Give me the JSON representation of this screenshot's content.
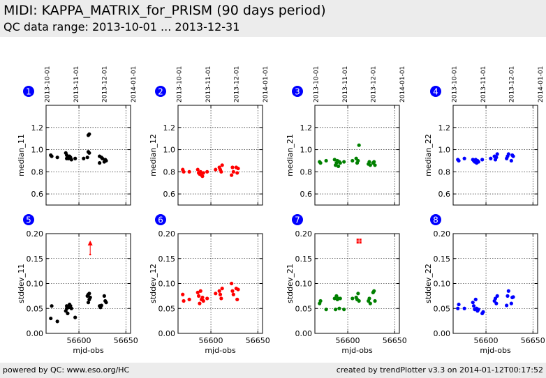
{
  "header": {
    "title": "MIDI: KAPPA_MATRIX_for_PRISM (90 days period)",
    "subtitle": "QC data range: 2013-10-01 ... 2013-12-31"
  },
  "footer": {
    "left": "powered by QC: www.eso.org/HC",
    "right": "created by trendPlotter v3.3 on 2014-01-12T00:17:52"
  },
  "chart_data": [
    {
      "type": "scatter",
      "panel": "1",
      "color": "#000000",
      "ylabel": "median_11",
      "xlim": [
        56565,
        56655
      ],
      "ylim": [
        0.5,
        1.4
      ],
      "yticks": [
        0.6,
        0.8,
        1.0,
        1.2
      ],
      "yticklabels": [
        "0.6",
        "0.8",
        "1.0",
        "1.2"
      ],
      "xticks": [
        56600,
        56650
      ],
      "xticklabels": [],
      "top_ticks": [
        "2013-10-01",
        "2013-11-01",
        "2013-12-01",
        "2014-01-01"
      ],
      "x": [
        56570,
        56571,
        56577,
        56586,
        56587,
        56587,
        56588,
        56589,
        56590,
        56591,
        56592,
        56596,
        56605,
        56609,
        56610,
        56610,
        56611,
        56611,
        56622,
        56622,
        56624,
        56625,
        56627,
        56628,
        56629
      ],
      "y": [
        0.95,
        0.94,
        0.93,
        0.97,
        0.95,
        0.92,
        0.93,
        0.92,
        0.94,
        0.93,
        0.91,
        0.92,
        0.92,
        0.93,
        0.98,
        1.13,
        0.97,
        1.14,
        0.94,
        0.88,
        0.93,
        0.92,
        0.89,
        0.91,
        0.9
      ]
    },
    {
      "type": "scatter",
      "panel": "2",
      "color": "#ff0000",
      "ylabel": "median_12",
      "xlim": [
        56565,
        56655
      ],
      "ylim": [
        0.5,
        1.4
      ],
      "yticks": [
        0.6,
        0.8,
        1.0,
        1.2
      ],
      "yticklabels": [
        "0.6",
        "0.8",
        "1.0",
        "1.2"
      ],
      "xticks": [
        56600,
        56650
      ],
      "xticklabels": [],
      "top_ticks": [
        "2013-10-01",
        "2013-11-01",
        "2013-12-01",
        "2014-01-01"
      ],
      "x": [
        56570,
        56571,
        56577,
        56586,
        56587,
        56588,
        56589,
        56590,
        56591,
        56592,
        56596,
        56605,
        56609,
        56610,
        56611,
        56612,
        56622,
        56623,
        56624,
        56627,
        56628,
        56629
      ],
      "y": [
        0.82,
        0.8,
        0.8,
        0.82,
        0.79,
        0.78,
        0.8,
        0.77,
        0.76,
        0.79,
        0.8,
        0.82,
        0.84,
        0.82,
        0.8,
        0.86,
        0.77,
        0.84,
        0.8,
        0.84,
        0.79,
        0.83
      ]
    },
    {
      "type": "scatter",
      "panel": "3",
      "color": "#008000",
      "ylabel": "median_21",
      "xlim": [
        56565,
        56655
      ],
      "ylim": [
        0.5,
        1.4
      ],
      "yticks": [
        0.6,
        0.8,
        1.0,
        1.2
      ],
      "yticklabels": [
        "0.6",
        "0.8",
        "1.0",
        "1.2"
      ],
      "xticks": [
        56600,
        56650
      ],
      "xticklabels": [],
      "top_ticks": [
        "2013-10-01",
        "2013-11-01",
        "2013-12-01",
        "2014-01-01"
      ],
      "x": [
        56570,
        56571,
        56577,
        56586,
        56587,
        56588,
        56589,
        56590,
        56591,
        56592,
        56596,
        56605,
        56609,
        56610,
        56611,
        56612,
        56622,
        56623,
        56624,
        56627,
        56628,
        56629
      ],
      "y": [
        0.89,
        0.88,
        0.9,
        0.91,
        0.86,
        0.88,
        0.9,
        0.85,
        0.89,
        0.88,
        0.89,
        0.9,
        0.92,
        0.88,
        0.9,
        1.04,
        0.87,
        0.89,
        0.86,
        0.88,
        0.89,
        0.86
      ]
    },
    {
      "type": "scatter",
      "panel": "4",
      "color": "#0000ff",
      "ylabel": "median_22",
      "xlim": [
        56565,
        56655
      ],
      "ylim": [
        0.5,
        1.4
      ],
      "yticks": [
        0.6,
        0.8,
        1.0,
        1.2
      ],
      "yticklabels": [
        "0.6",
        "0.8",
        "1.0",
        "1.2"
      ],
      "xticks": [
        56600,
        56650
      ],
      "xticklabels": [],
      "top_ticks": [
        "2013-10-01",
        "2013-11-01",
        "2013-12-01",
        "2014-01-01"
      ],
      "x": [
        56570,
        56571,
        56577,
        56586,
        56587,
        56588,
        56589,
        56590,
        56591,
        56592,
        56596,
        56605,
        56609,
        56610,
        56611,
        56612,
        56622,
        56623,
        56624,
        56627,
        56628,
        56629
      ],
      "y": [
        0.91,
        0.9,
        0.92,
        0.91,
        0.9,
        0.89,
        0.91,
        0.88,
        0.9,
        0.89,
        0.91,
        0.92,
        0.94,
        0.91,
        0.93,
        0.96,
        0.92,
        0.94,
        0.96,
        0.9,
        0.95,
        0.94
      ]
    },
    {
      "type": "scatter",
      "panel": "5",
      "color": "#000000",
      "ylabel": "stddev_11",
      "xlabel": "mjd-obs",
      "xlim": [
        56565,
        56655
      ],
      "ylim": [
        0,
        0.2
      ],
      "yticks": [
        0,
        0.05,
        0.1,
        0.15,
        0.2
      ],
      "yticklabels": [
        "0.00",
        "0.05",
        "0.10",
        "0.15",
        "0.20"
      ],
      "xticks": [
        56600,
        56650
      ],
      "xticklabels": [
        "56600",
        "56650"
      ],
      "x": [
        56570,
        56571,
        56577,
        56586,
        56587,
        56587,
        56588,
        56589,
        56590,
        56591,
        56592,
        56596,
        56609,
        56610,
        56610,
        56611,
        56611,
        56612,
        56622,
        56623,
        56624,
        56627,
        56628,
        56629
      ],
      "y": [
        0.03,
        0.055,
        0.024,
        0.045,
        0.05,
        0.055,
        0.04,
        0.052,
        0.058,
        0.055,
        0.05,
        0.032,
        0.075,
        0.078,
        0.062,
        0.068,
        0.08,
        0.072,
        0.055,
        0.052,
        0.056,
        0.075,
        0.065,
        0.062
      ],
      "outliers": [
        {
          "x": 56612,
          "y": 0.175,
          "marker": "arrow",
          "color": "#ff0000"
        }
      ]
    },
    {
      "type": "scatter",
      "panel": "6",
      "color": "#ff0000",
      "ylabel": "stddev_12",
      "xlabel": "mjd-obs",
      "xlim": [
        56565,
        56655
      ],
      "ylim": [
        0,
        0.2
      ],
      "yticks": [
        0,
        0.05,
        0.1,
        0.15,
        0.2
      ],
      "yticklabels": [
        "0.00",
        "0.05",
        "0.10",
        "0.15",
        "0.20"
      ],
      "xticks": [
        56600,
        56650
      ],
      "xticklabels": [
        "56600",
        "56650"
      ],
      "x": [
        56570,
        56571,
        56577,
        56586,
        56587,
        56588,
        56589,
        56590,
        56591,
        56592,
        56596,
        56605,
        56609,
        56610,
        56611,
        56612,
        56622,
        56623,
        56624,
        56627,
        56628,
        56629
      ],
      "y": [
        0.078,
        0.065,
        0.068,
        0.082,
        0.075,
        0.06,
        0.085,
        0.068,
        0.072,
        0.065,
        0.07,
        0.08,
        0.085,
        0.078,
        0.07,
        0.09,
        0.1,
        0.085,
        0.078,
        0.09,
        0.068,
        0.088
      ]
    },
    {
      "type": "scatter",
      "panel": "7",
      "color": "#008000",
      "ylabel": "stddev_21",
      "xlabel": "mjd-obs",
      "xlim": [
        56565,
        56655
      ],
      "ylim": [
        0,
        0.2
      ],
      "yticks": [
        0,
        0.05,
        0.1,
        0.15,
        0.2
      ],
      "yticklabels": [
        "0.00",
        "0.05",
        "0.10",
        "0.15",
        "0.20"
      ],
      "xticks": [
        56600,
        56650
      ],
      "xticklabels": [
        "56600",
        "56650"
      ],
      "x": [
        56570,
        56571,
        56577,
        56586,
        56587,
        56588,
        56589,
        56590,
        56591,
        56592,
        56596,
        56605,
        56609,
        56610,
        56611,
        56612,
        56622,
        56623,
        56624,
        56627,
        56628,
        56629
      ],
      "y": [
        0.06,
        0.065,
        0.048,
        0.07,
        0.048,
        0.075,
        0.068,
        0.07,
        0.05,
        0.07,
        0.048,
        0.07,
        0.072,
        0.068,
        0.08,
        0.065,
        0.065,
        0.07,
        0.06,
        0.082,
        0.085,
        0.065
      ],
      "outliers": [
        {
          "x": 56612,
          "y": 0.185,
          "marker": "square",
          "color": "#ff0000"
        }
      ]
    },
    {
      "type": "scatter",
      "panel": "8",
      "color": "#0000ff",
      "ylabel": "stddev_22",
      "xlabel": "mjd-obs",
      "xlim": [
        56565,
        56655
      ],
      "ylim": [
        0,
        0.2
      ],
      "yticks": [
        0,
        0.05,
        0.1,
        0.15,
        0.2
      ],
      "yticklabels": [
        "0.00",
        "0.05",
        "0.10",
        "0.15",
        "0.20"
      ],
      "xticks": [
        56600,
        56650
      ],
      "xticklabels": [
        "56600",
        "56650"
      ],
      "x": [
        56570,
        56571,
        56577,
        56586,
        56587,
        56588,
        56589,
        56590,
        56591,
        56592,
        56596,
        56597,
        56609,
        56610,
        56611,
        56612,
        56622,
        56623,
        56624,
        56627,
        56628,
        56629
      ],
      "y": [
        0.05,
        0.058,
        0.05,
        0.062,
        0.055,
        0.048,
        0.068,
        0.05,
        0.045,
        0.048,
        0.04,
        0.043,
        0.065,
        0.07,
        0.06,
        0.075,
        0.056,
        0.075,
        0.085,
        0.06,
        0.072,
        0.073
      ]
    }
  ]
}
